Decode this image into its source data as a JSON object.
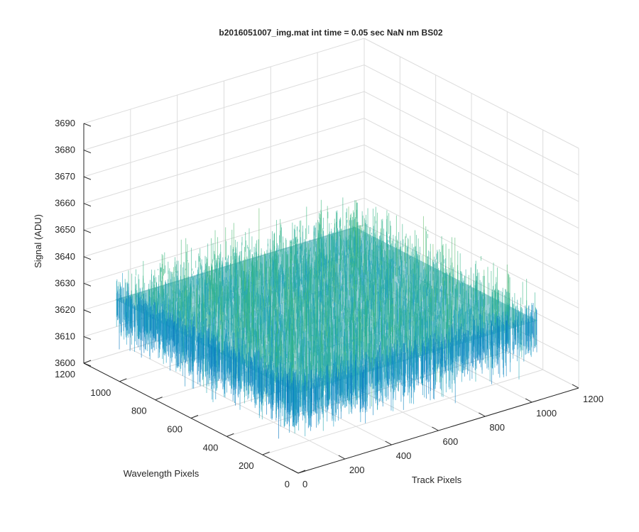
{
  "chart_data": {
    "type": "surface",
    "title": "b2016051007_img.mat int time = 0.05 sec  NaN nm BS02",
    "xlabel": "Track Pixels",
    "ylabel": "Wavelength Pixels",
    "zlabel": "Signal (ADU)",
    "xlim": [
      0,
      1200
    ],
    "ylim": [
      0,
      1200
    ],
    "zlim": [
      3600,
      3690
    ],
    "xticks": [
      "0",
      "200",
      "400",
      "600",
      "800",
      "1000",
      "1200"
    ],
    "yticks": [
      "0",
      "200",
      "400",
      "600",
      "800",
      "1000",
      "1200"
    ],
    "zticks": [
      "3600",
      "3610",
      "3620",
      "3630",
      "3640",
      "3650",
      "3660",
      "3670",
      "3680",
      "3690"
    ],
    "grid": true,
    "colormap": "parula",
    "colors": {
      "low": "#0072bd",
      "mid": "#35b779",
      "high": "#edb120"
    },
    "data_extent": {
      "x": [
        1,
        1024
      ],
      "y": [
        1,
        1024
      ]
    },
    "signal": {
      "mean": 3630,
      "noise_range": [
        3605,
        3670
      ]
    }
  }
}
